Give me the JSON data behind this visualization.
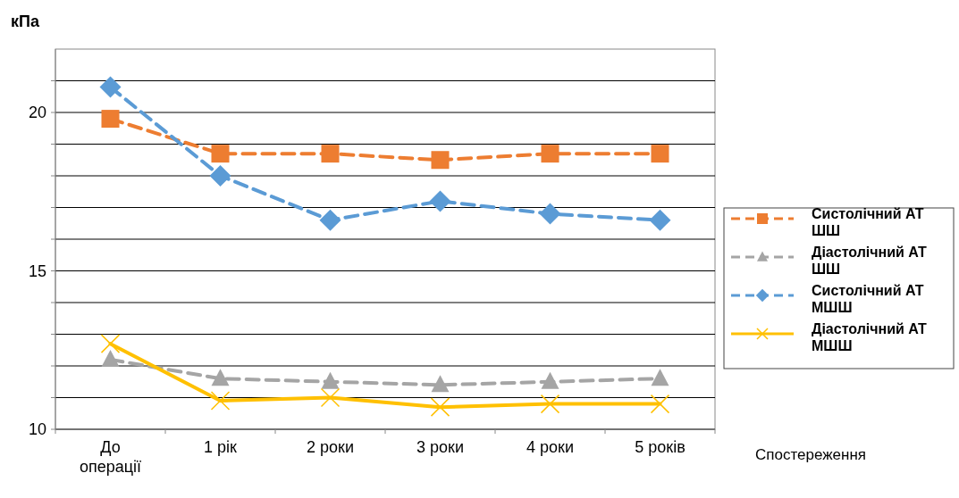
{
  "chart_data": {
    "type": "line",
    "ylabel": "кПа",
    "xlabel": "Спостереження",
    "categories": [
      "До операції",
      "1 рік",
      "2 роки",
      "3 роки",
      "4 роки",
      "5 років"
    ],
    "series": [
      {
        "name": "Систолічний АТ ШШ",
        "color": "#ed7d31",
        "marker": "square",
        "line_style": "dashed",
        "values": [
          19.8,
          18.7,
          18.7,
          18.5,
          18.7,
          18.7
        ]
      },
      {
        "name": "Діастолічний АТ ШШ",
        "color": "#a5a5a5",
        "marker": "triangle",
        "line_style": "dashed",
        "values": [
          12.2,
          11.6,
          11.5,
          11.4,
          11.5,
          11.6
        ]
      },
      {
        "name": "Систолічний АТ МШШ",
        "color": "#5b9bd5",
        "marker": "diamond",
        "line_style": "dashed",
        "values": [
          20.8,
          18.0,
          16.6,
          17.2,
          16.8,
          16.6
        ]
      },
      {
        "name": "Діастолічний АТ МШШ",
        "color": "#ffc000",
        "marker": "cross",
        "line_style": "solid",
        "values": [
          12.7,
          10.9,
          11.0,
          10.7,
          10.8,
          10.8
        ]
      }
    ],
    "ylim": [
      10,
      22
    ],
    "yticks": [
      10,
      {
        "value": 11,
        "label": null
      },
      {
        "value": 12,
        "label": null
      },
      {
        "value": 13,
        "label": null
      },
      {
        "value": 14,
        "label": null
      },
      15,
      {
        "value": 16,
        "label": null
      },
      {
        "value": 17,
        "label": null
      },
      {
        "value": 18,
        "label": null
      },
      {
        "value": 19,
        "label": null
      },
      20,
      {
        "value": 21,
        "label": null
      }
    ],
    "grid": "y",
    "legend": "right"
  }
}
